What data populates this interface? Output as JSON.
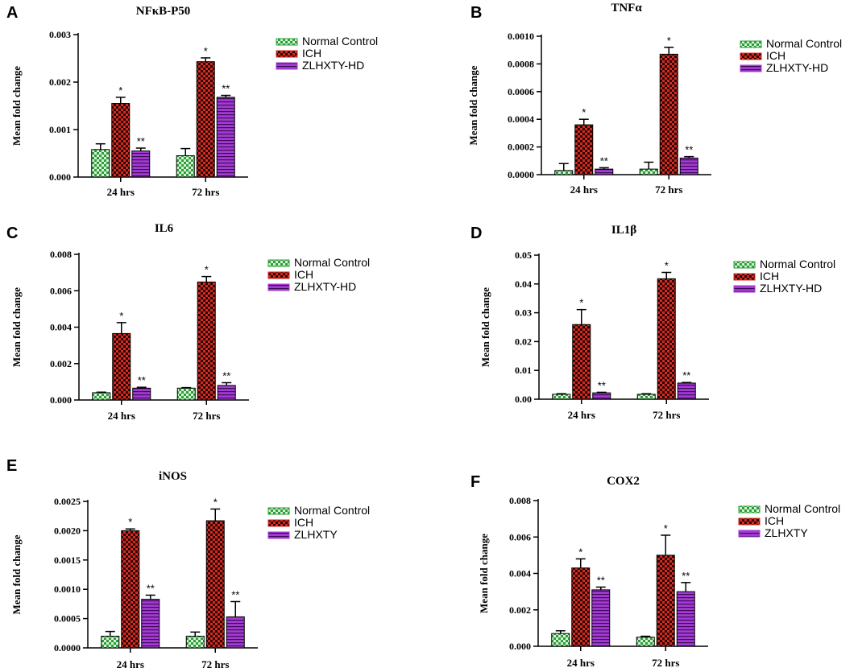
{
  "colors": {
    "normal": "#2e9e3a",
    "ich": "#d42a1f",
    "zlhxty": "#a43ad4",
    "ink": "#000000"
  },
  "chart_data": [
    {
      "panel": "A",
      "type": "bar",
      "title": "NFκB-P50",
      "ylabel": "Mean fold change",
      "xlabel": "",
      "categories": [
        "24 hrs",
        "72 hrs"
      ],
      "ylim": [
        0,
        0.003
      ],
      "yticks": [
        0,
        0.001,
        0.002,
        0.003
      ],
      "ytick_labels": [
        "0.000",
        "0.001",
        "0.002",
        "0.003"
      ],
      "legend": "right",
      "series": [
        {
          "name": "Normal Control",
          "values": [
            0.00058,
            0.00045
          ],
          "errors": [
            0.00012,
            0.00015
          ],
          "sig": [
            "",
            ""
          ]
        },
        {
          "name": "ICH",
          "values": [
            0.00155,
            0.00243
          ],
          "errors": [
            0.00013,
            8e-05
          ],
          "sig": [
            "*",
            "*"
          ]
        },
        {
          "name": "ZLHXTY-HD",
          "values": [
            0.00055,
            0.00168
          ],
          "errors": [
            6e-05,
            4e-05
          ],
          "sig": [
            "**",
            "**"
          ]
        }
      ]
    },
    {
      "panel": "B",
      "type": "bar",
      "title": "TNFα",
      "ylabel": "Mean fold change",
      "xlabel": "",
      "categories": [
        "24 hrs",
        "72 hrs"
      ],
      "ylim": [
        0,
        0.001
      ],
      "yticks": [
        0,
        0.0002,
        0.0004,
        0.0006,
        0.0008,
        0.001
      ],
      "ytick_labels": [
        "0.0000",
        "0.0002",
        "0.0004",
        "0.0006",
        "0.0008",
        "0.0010"
      ],
      "legend": "right",
      "series": [
        {
          "name": "Normal Control",
          "values": [
            3e-05,
            4e-05
          ],
          "errors": [
            5e-05,
            5e-05
          ],
          "sig": [
            "",
            ""
          ]
        },
        {
          "name": "ICH",
          "values": [
            0.00036,
            0.00087
          ],
          "errors": [
            4e-05,
            5e-05
          ],
          "sig": [
            "*",
            "*"
          ]
        },
        {
          "name": "ZLHXTY-HD",
          "values": [
            4e-05,
            0.00012
          ],
          "errors": [
            1e-05,
            1e-05
          ],
          "sig": [
            "**",
            "**"
          ]
        }
      ]
    },
    {
      "panel": "C",
      "type": "bar",
      "title": "IL6",
      "ylabel": "Mean fold change",
      "xlabel": "",
      "categories": [
        "24 hrs",
        "72 hrs"
      ],
      "ylim": [
        0,
        0.008
      ],
      "yticks": [
        0,
        0.002,
        0.004,
        0.006,
        0.008
      ],
      "ytick_labels": [
        "0.000",
        "0.002",
        "0.004",
        "0.006",
        "0.008"
      ],
      "legend": "right",
      "series": [
        {
          "name": "Normal Control",
          "values": [
            0.0004,
            0.00065
          ],
          "errors": [
            3e-05,
            3e-05
          ],
          "sig": [
            "",
            ""
          ]
        },
        {
          "name": "ICH",
          "values": [
            0.00365,
            0.00648
          ],
          "errors": [
            0.0006,
            0.0003
          ],
          "sig": [
            "*",
            "*"
          ]
        },
        {
          "name": "ZLHXTY-HD",
          "values": [
            0.00065,
            0.0008
          ],
          "errors": [
            5e-05,
            0.00015
          ],
          "sig": [
            "**",
            "**"
          ]
        }
      ]
    },
    {
      "panel": "D",
      "type": "bar",
      "title": "IL1β",
      "ylabel": "Mean fold change",
      "xlabel": "",
      "categories": [
        "24 hrs",
        "72 hrs"
      ],
      "ylim": [
        0,
        0.05
      ],
      "yticks": [
        0,
        0.01,
        0.02,
        0.03,
        0.04,
        0.05
      ],
      "ytick_labels": [
        "0.00",
        "0.01",
        "0.02",
        "0.03",
        "0.04",
        "0.05"
      ],
      "legend": "right",
      "series": [
        {
          "name": "Normal Control",
          "values": [
            0.0017,
            0.0017
          ],
          "errors": [
            0.0002,
            0.0002
          ],
          "sig": [
            "",
            ""
          ]
        },
        {
          "name": "ICH",
          "values": [
            0.0259,
            0.0418
          ],
          "errors": [
            0.0052,
            0.0022
          ],
          "sig": [
            "*",
            "*"
          ]
        },
        {
          "name": "ZLHXTY-HD",
          "values": [
            0.0022,
            0.0056
          ],
          "errors": [
            0.0002,
            0.0002
          ],
          "sig": [
            "**",
            "**"
          ]
        }
      ]
    },
    {
      "panel": "E",
      "type": "bar",
      "title": "iNOS",
      "ylabel": "Mean fold change",
      "xlabel": "",
      "categories": [
        "24 hrs",
        "72 hrs"
      ],
      "ylim": [
        0,
        0.0025
      ],
      "yticks": [
        0,
        0.0005,
        0.001,
        0.0015,
        0.002,
        0.0025
      ],
      "ytick_labels": [
        "0.0000",
        "0.0005",
        "0.0010",
        "0.0015",
        "0.0020",
        "0.0025"
      ],
      "legend": "right",
      "series": [
        {
          "name": "Normal Control",
          "values": [
            0.0002,
            0.0002
          ],
          "errors": [
            8e-05,
            7e-05
          ],
          "sig": [
            "",
            ""
          ]
        },
        {
          "name": "ICH",
          "values": [
            0.002,
            0.00217
          ],
          "errors": [
            3e-05,
            0.0002
          ],
          "sig": [
            "*",
            "*"
          ]
        },
        {
          "name": "ZLHXTY",
          "values": [
            0.00083,
            0.00053
          ],
          "errors": [
            7e-05,
            0.00026
          ],
          "sig": [
            "**",
            "**"
          ]
        }
      ]
    },
    {
      "panel": "F",
      "type": "bar",
      "title": "COX2",
      "ylabel": "Mean fold change",
      "xlabel": "",
      "categories": [
        "24 hrs",
        "72 hrs"
      ],
      "ylim": [
        0,
        0.008
      ],
      "yticks": [
        0,
        0.002,
        0.004,
        0.006,
        0.008
      ],
      "ytick_labels": [
        "0.000",
        "0.002",
        "0.004",
        "0.006",
        "0.008"
      ],
      "legend": "right",
      "series": [
        {
          "name": "Normal Control",
          "values": [
            0.0007,
            0.0005
          ],
          "errors": [
            0.00015,
            5e-05
          ],
          "sig": [
            "",
            ""
          ]
        },
        {
          "name": "ICH",
          "values": [
            0.0043,
            0.005
          ],
          "errors": [
            0.0005,
            0.0011
          ],
          "sig": [
            "*",
            "*"
          ]
        },
        {
          "name": "ZLHXTY",
          "values": [
            0.0031,
            0.003
          ],
          "errors": [
            0.00015,
            0.0005
          ],
          "sig": [
            "**",
            "**"
          ]
        }
      ]
    }
  ]
}
